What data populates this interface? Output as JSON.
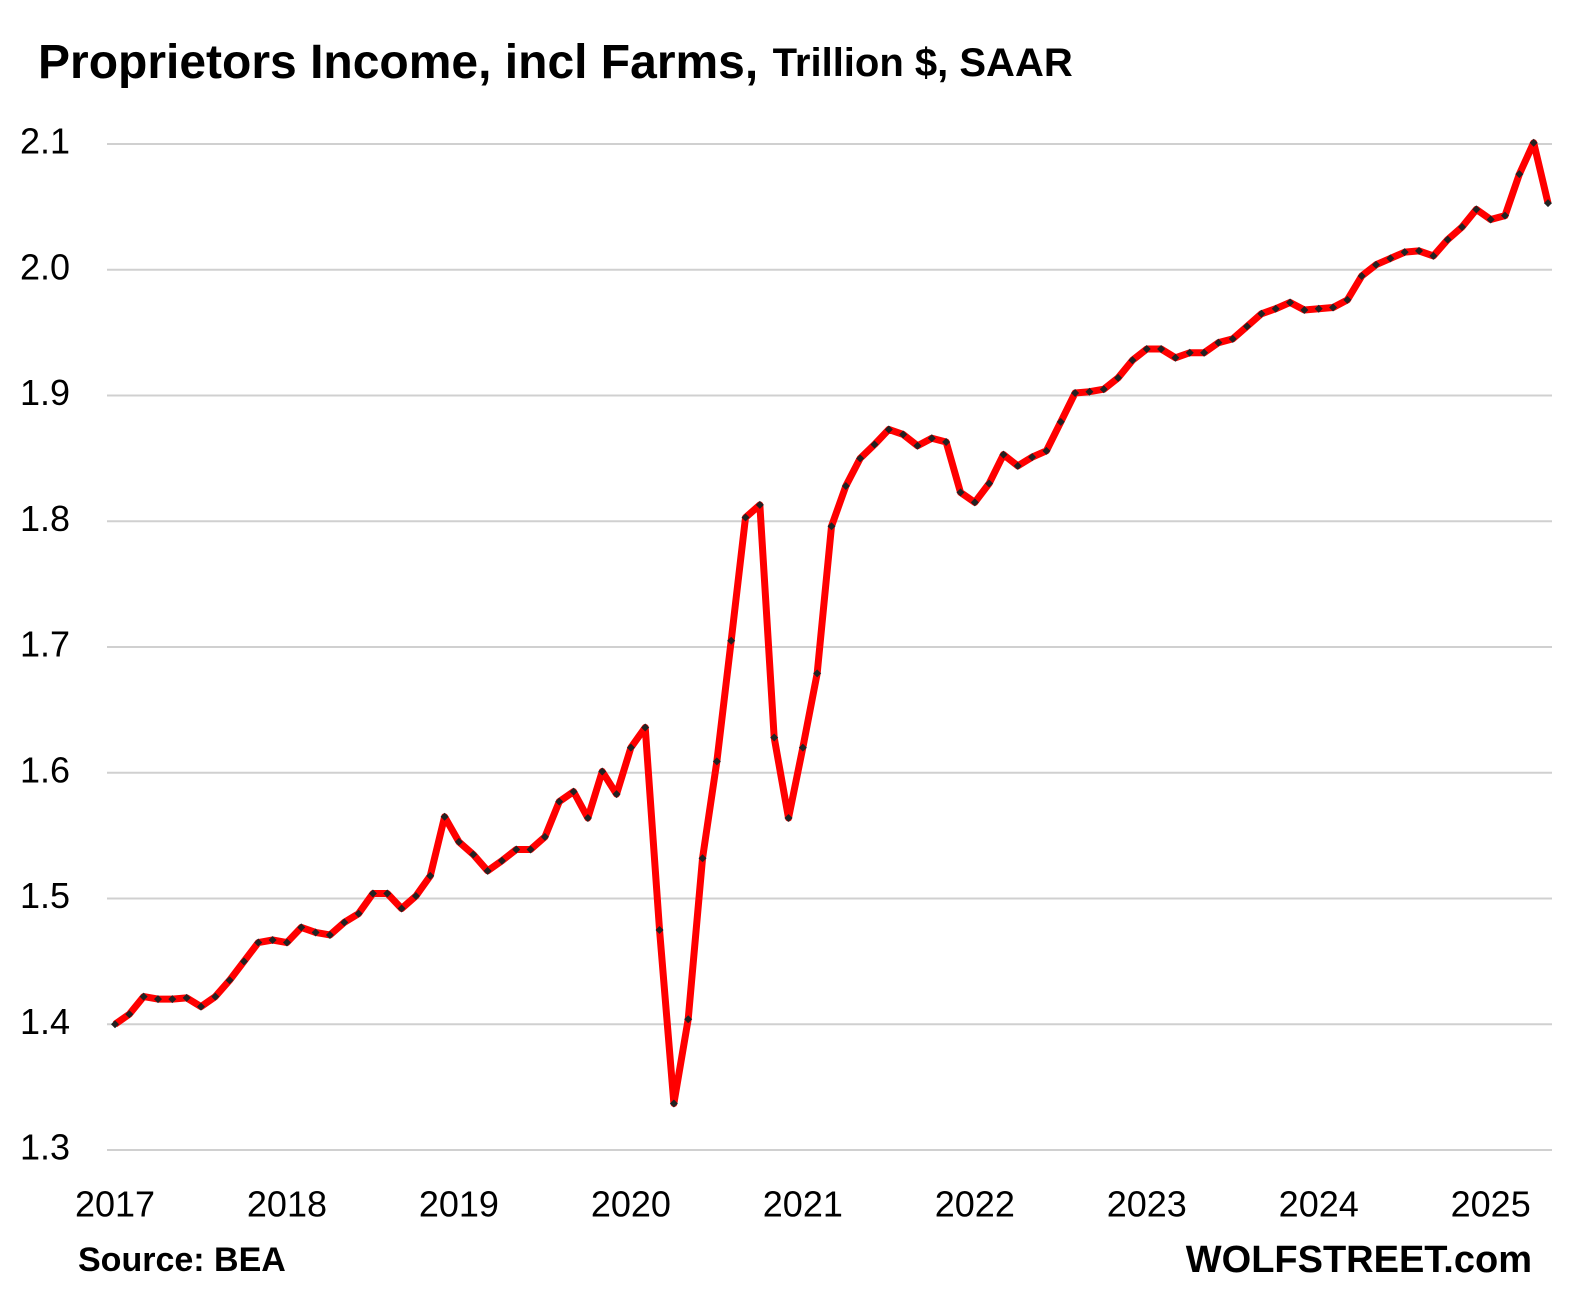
{
  "chart_data": {
    "type": "line",
    "title": "Proprietors Income, incl Farms,",
    "subtitle": "Trillion $, SAAR",
    "source": "Source: BEA",
    "watermark": "WOLFSTREET.com",
    "categories": [
      "2017",
      null,
      null,
      null,
      null,
      null,
      null,
      null,
      null,
      null,
      null,
      null,
      "2018",
      null,
      null,
      null,
      null,
      null,
      null,
      null,
      null,
      null,
      null,
      null,
      "2019",
      null,
      null,
      null,
      null,
      null,
      null,
      null,
      null,
      null,
      null,
      null,
      "2020",
      null,
      null,
      null,
      null,
      null,
      null,
      null,
      null,
      null,
      null,
      null,
      "2021",
      null,
      null,
      null,
      null,
      null,
      null,
      null,
      null,
      null,
      null,
      null,
      "2022",
      null,
      null,
      null,
      null,
      null,
      null,
      null,
      null,
      null,
      null,
      null,
      "2023",
      null,
      null,
      null,
      null,
      null,
      null,
      null,
      null,
      null,
      null,
      null,
      "2024",
      null,
      null,
      null,
      null,
      null,
      null,
      null,
      null,
      null,
      null,
      null,
      "2025",
      null,
      null,
      null,
      null
    ],
    "series": [
      {
        "name": "Proprietors Income",
        "color": "#ff0000",
        "marker_color": "#222222",
        "values": [
          1.4,
          1.408,
          1.422,
          1.42,
          1.42,
          1.421,
          1.414,
          1.422,
          1.435,
          1.45,
          1.465,
          1.467,
          1.465,
          1.477,
          1.473,
          1.471,
          1.481,
          1.488,
          1.504,
          1.504,
          1.492,
          1.502,
          1.518,
          1.565,
          1.545,
          1.535,
          1.522,
          1.53,
          1.539,
          1.539,
          1.549,
          1.577,
          1.585,
          1.564,
          1.601,
          1.583,
          1.62,
          1.636,
          1.475,
          1.337,
          1.404,
          1.532,
          1.609,
          1.705,
          1.803,
          1.813,
          1.628,
          1.564,
          1.62,
          1.679,
          1.796,
          1.828,
          1.85,
          1.861,
          1.873,
          1.869,
          1.86,
          1.866,
          1.863,
          1.823,
          1.815,
          1.83,
          1.853,
          1.844,
          1.851,
          1.856,
          1.879,
          1.902,
          1.903,
          1.905,
          1.914,
          1.928,
          1.937,
          1.937,
          1.93,
          1.934,
          1.934,
          1.942,
          1.945,
          1.955,
          1.965,
          1.969,
          1.974,
          1.968,
          1.969,
          1.97,
          1.976,
          1.995,
          2.004,
          2.009,
          2.014,
          2.015,
          2.011,
          2.024,
          2.034,
          2.048,
          2.04,
          2.043,
          2.076,
          2.101,
          2.053
        ]
      }
    ],
    "ylim": [
      1.3,
      2.1
    ],
    "yticks": [
      1.3,
      1.4,
      1.5,
      1.6,
      1.7,
      1.8,
      1.9,
      {
        "value": 2.0,
        "label": "2.0"
      },
      2.1
    ],
    "grid": true
  }
}
